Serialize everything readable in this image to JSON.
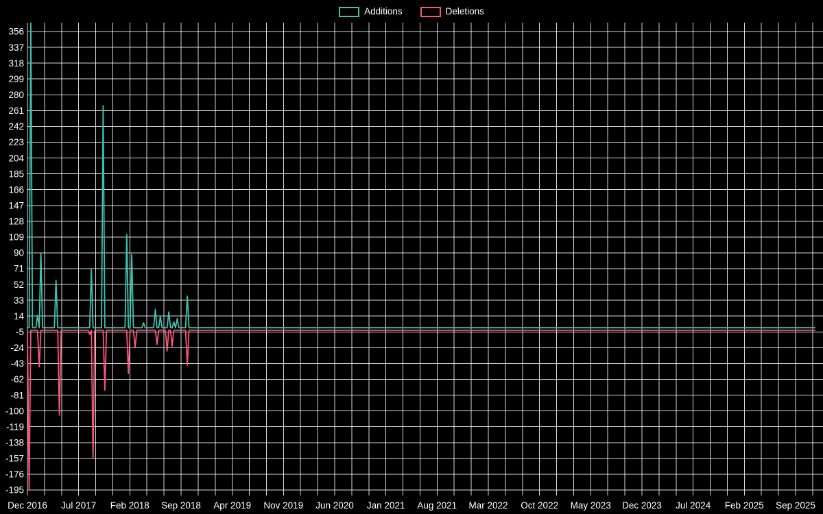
{
  "chart_data": {
    "type": "line",
    "legend": [
      {
        "label": "Additions",
        "color": "#3cc3b1"
      },
      {
        "label": "Deletions",
        "color": "#f9557b"
      }
    ],
    "legend_position": "top-center",
    "background": "#000000",
    "y_axis": {
      "max": 356,
      "min": -195,
      "tick_step": 19,
      "ticks": [
        356,
        337,
        318,
        299,
        280,
        261,
        242,
        223,
        204,
        185,
        166,
        147,
        128,
        109,
        90,
        71,
        52,
        33,
        14,
        -5,
        -24,
        -43,
        -62,
        -81,
        -100,
        -119,
        -138,
        -157,
        -176,
        -195
      ]
    },
    "x_axis": {
      "unit": "week",
      "tick_labels": [
        "Dec 2016",
        "Jul 2017",
        "Feb 2018",
        "Sep 2018",
        "Apr 2019",
        "Nov 2019",
        "Jun 2020",
        "Jan 2021",
        "Aug 2021",
        "Mar 2022",
        "Oct 2022",
        "May 2023",
        "Dec 2023",
        "Jul 2024",
        "Feb 2025",
        "Sep 2025"
      ],
      "weeks_per_tick_interval": 30.43,
      "total_weeks": 468
    },
    "grid": {
      "show": true,
      "color": "#ffffff",
      "opacity": 0.85,
      "vertical_subdivisions": 3
    },
    "series": [
      {
        "name": "Additions",
        "color": "#3cc3b1",
        "baseline": 0,
        "points": [
          [
            2,
            368
          ],
          [
            6,
            15
          ],
          [
            8,
            90
          ],
          [
            17,
            57
          ],
          [
            38,
            70
          ],
          [
            45,
            267
          ],
          [
            59,
            112
          ],
          [
            62,
            88
          ],
          [
            69,
            6
          ],
          [
            76,
            22
          ],
          [
            79,
            14
          ],
          [
            84,
            19
          ],
          [
            87,
            7
          ],
          [
            89,
            11
          ],
          [
            95,
            38
          ]
        ]
      },
      {
        "name": "Deletions",
        "color": "#f9557b",
        "baseline": -3,
        "points": [
          [
            1,
            -195
          ],
          [
            7,
            -47
          ],
          [
            19,
            -105
          ],
          [
            37,
            -8
          ],
          [
            39,
            -157
          ],
          [
            46,
            -75
          ],
          [
            60,
            -55
          ],
          [
            64,
            -24
          ],
          [
            77,
            -20
          ],
          [
            83,
            -28
          ],
          [
            86,
            -22
          ],
          [
            95,
            -45
          ]
        ]
      }
    ]
  }
}
